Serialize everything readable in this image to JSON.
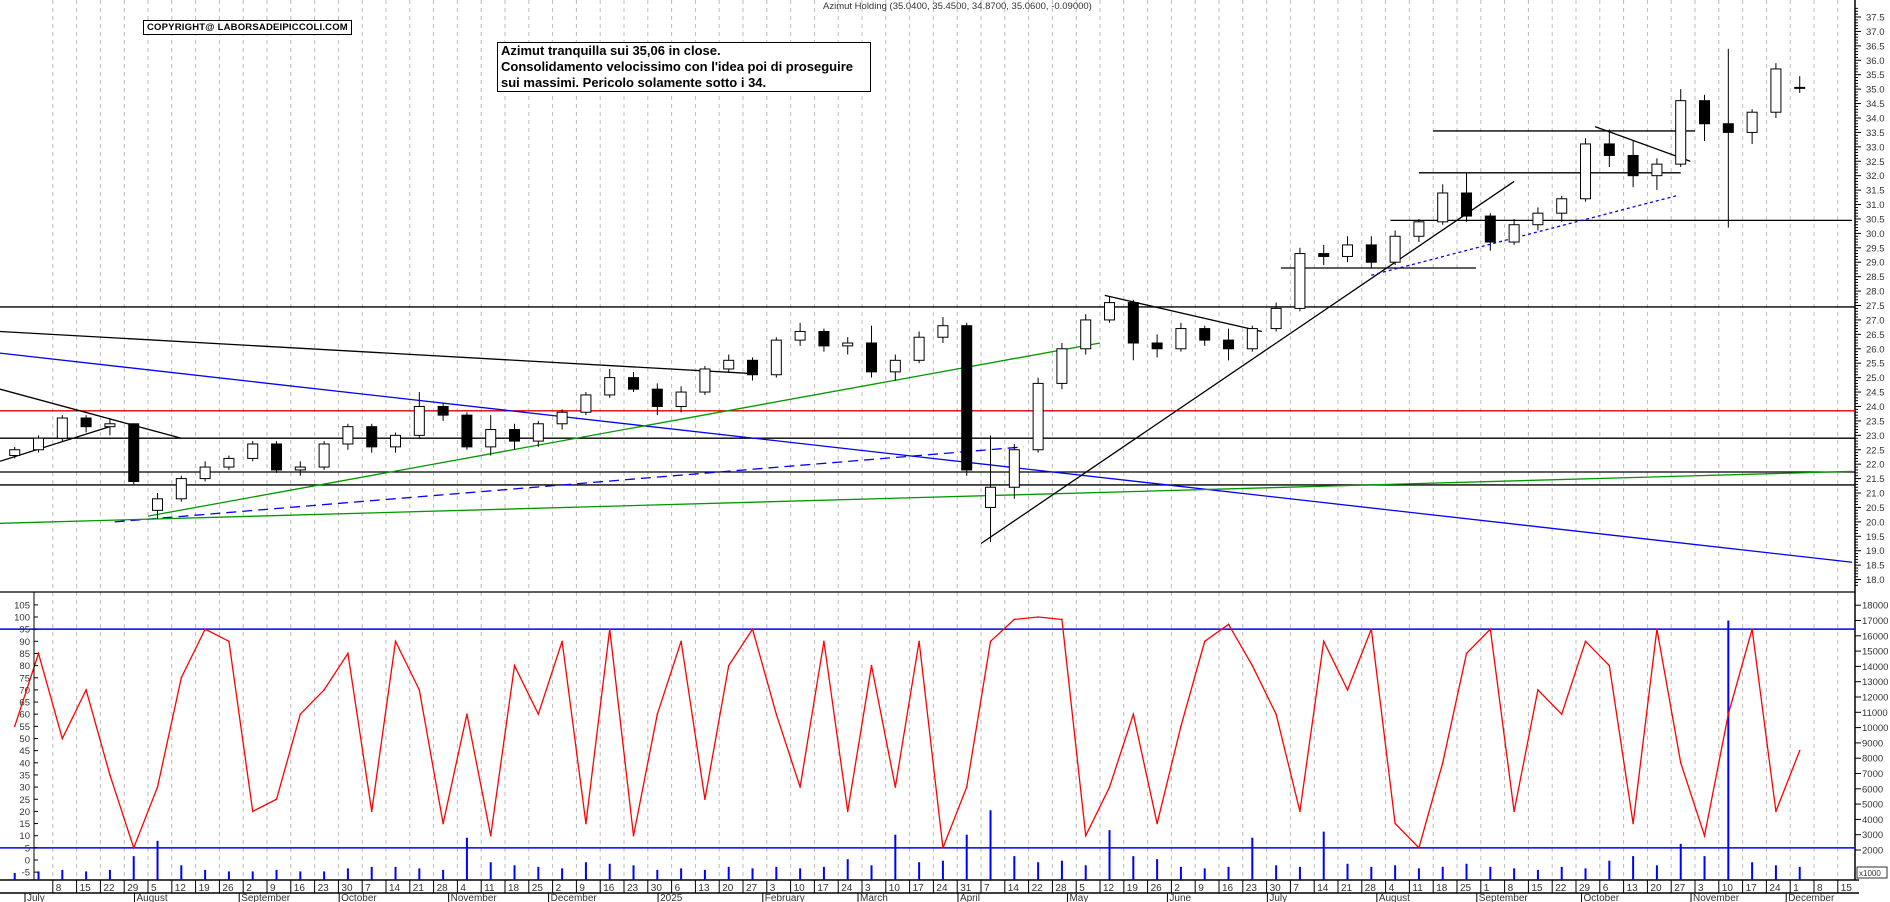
{
  "title": "Azimut Holding (35.0400, 35.4500, 34.8700, 35.0600, -0.09000)",
  "copyright": "COPYRIGHT@ LABORSADEIPICCOLI.COM",
  "note": [
    "Azimut tranquilla sui 35,06 in close.",
    "Consolidamento velocissimo con l'idea poi di proseguire",
    "sui massimi. Pericolo solamente sotto i 34."
  ],
  "colors": {
    "up": "#ffffff",
    "down": "#000000",
    "oscillator": "#ff0000",
    "volume": "#0000ff",
    "grid": "#bbbbbb"
  },
  "chart_data": [
    {
      "type": "candlestick",
      "name": "Azimut Holding",
      "period": "weekly approximation of daily candles",
      "x_range": [
        "2024-06-20",
        "2025-12-18"
      ],
      "ylim": [
        17.8,
        37.9
      ],
      "y_ticks": [
        "18.0",
        "18.5",
        "19.0",
        "19.5",
        "20.0",
        "20.5",
        "21.0",
        "21.5",
        "22.0",
        "22.5",
        "23.0",
        "23.5",
        "24.0",
        "24.5",
        "25.0",
        "25.5",
        "26.0",
        "26.5",
        "27.0",
        "27.5",
        "28.0",
        "28.5",
        "29.0",
        "29.5",
        "30.0",
        "30.5",
        "31.0",
        "31.5",
        "32.0",
        "32.5",
        "33.0",
        "33.5",
        "34.0",
        "34.5",
        "35.0",
        "35.5",
        "36.0",
        "36.5",
        "37.0",
        "37.5"
      ],
      "grid": true,
      "candles": [
        [
          "2024-06-24",
          22.3,
          22.6,
          22.2,
          22.5
        ],
        [
          "2024-07-01",
          22.5,
          23.0,
          22.4,
          22.9
        ],
        [
          "2024-07-08",
          22.9,
          23.7,
          22.8,
          23.6
        ],
        [
          "2024-07-15",
          23.6,
          23.7,
          23.1,
          23.3
        ],
        [
          "2024-07-22",
          23.3,
          23.6,
          23.0,
          23.4
        ],
        [
          "2024-07-29",
          23.4,
          23.4,
          21.3,
          21.4
        ],
        [
          "2024-08-05",
          20.4,
          21.0,
          20.1,
          20.8
        ],
        [
          "2024-08-12",
          20.8,
          21.6,
          20.7,
          21.5
        ],
        [
          "2024-08-19",
          21.5,
          22.1,
          21.4,
          21.9
        ],
        [
          "2024-08-26",
          21.9,
          22.3,
          21.8,
          22.2
        ],
        [
          "2024-09-02",
          22.2,
          22.8,
          22.1,
          22.7
        ],
        [
          "2024-09-09",
          22.7,
          22.8,
          21.7,
          21.8
        ],
        [
          "2024-09-16",
          21.8,
          22.1,
          21.6,
          21.9
        ],
        [
          "2024-09-23",
          21.9,
          22.8,
          21.8,
          22.7
        ],
        [
          "2024-09-30",
          22.7,
          23.4,
          22.5,
          23.3
        ],
        [
          "2024-10-07",
          23.3,
          23.4,
          22.4,
          22.6
        ],
        [
          "2024-10-14",
          22.6,
          23.1,
          22.4,
          23.0
        ],
        [
          "2024-10-21",
          23.0,
          24.5,
          22.9,
          24.0
        ],
        [
          "2024-10-28",
          24.0,
          24.1,
          23.5,
          23.7
        ],
        [
          "2024-11-04",
          23.7,
          23.8,
          22.5,
          22.6
        ],
        [
          "2024-11-11",
          22.6,
          23.7,
          22.3,
          23.2
        ],
        [
          "2024-11-18",
          23.2,
          23.4,
          22.5,
          22.8
        ],
        [
          "2024-11-25",
          22.8,
          23.5,
          22.6,
          23.4
        ],
        [
          "2024-12-02",
          23.4,
          23.9,
          23.2,
          23.8
        ],
        [
          "2024-12-09",
          23.8,
          24.5,
          23.7,
          24.4
        ],
        [
          "2024-12-16",
          24.4,
          25.3,
          24.3,
          25.0
        ],
        [
          "2024-12-23",
          25.0,
          25.2,
          24.5,
          24.6
        ],
        [
          "2024-12-30",
          24.6,
          24.8,
          23.7,
          24.0
        ],
        [
          "2025-01-06",
          24.0,
          24.7,
          23.8,
          24.5
        ],
        [
          "2025-01-13",
          24.5,
          25.4,
          24.4,
          25.3
        ],
        [
          "2025-01-20",
          25.3,
          25.8,
          25.2,
          25.6
        ],
        [
          "2025-01-27",
          25.6,
          25.7,
          24.9,
          25.1
        ],
        [
          "2025-02-03",
          25.1,
          26.4,
          25.0,
          26.3
        ],
        [
          "2025-02-10",
          26.3,
          26.9,
          26.1,
          26.6
        ],
        [
          "2025-02-17",
          26.6,
          26.7,
          25.9,
          26.1
        ],
        [
          "2025-02-24",
          26.1,
          26.4,
          25.8,
          26.2
        ],
        [
          "2025-03-03",
          26.2,
          26.8,
          25.0,
          25.2
        ],
        [
          "2025-03-10",
          25.2,
          25.8,
          24.9,
          25.6
        ],
        [
          "2025-03-17",
          25.6,
          26.6,
          25.5,
          26.4
        ],
        [
          "2025-03-24",
          26.4,
          27.1,
          26.2,
          26.8
        ],
        [
          "2025-03-31",
          26.8,
          26.9,
          21.6,
          21.8
        ],
        [
          "2025-04-07",
          20.5,
          23.0,
          19.3,
          21.2
        ],
        [
          "2025-04-14",
          21.2,
          22.7,
          20.8,
          22.5
        ],
        [
          "2025-04-21",
          22.5,
          25.0,
          22.4,
          24.8
        ],
        [
          "2025-04-28",
          24.8,
          26.2,
          24.6,
          26.0
        ],
        [
          "2025-05-05",
          26.0,
          27.2,
          25.8,
          27.0
        ],
        [
          "2025-05-12",
          27.0,
          27.8,
          26.9,
          27.6
        ],
        [
          "2025-05-19",
          27.6,
          27.7,
          25.6,
          26.2
        ],
        [
          "2025-05-26",
          26.2,
          26.5,
          25.7,
          26.0
        ],
        [
          "2025-06-02",
          26.0,
          26.9,
          25.9,
          26.7
        ],
        [
          "2025-06-09",
          26.7,
          26.8,
          26.1,
          26.3
        ],
        [
          "2025-06-16",
          26.3,
          26.7,
          25.6,
          26.0
        ],
        [
          "2025-06-23",
          26.0,
          26.8,
          25.9,
          26.7
        ],
        [
          "2025-06-30",
          26.7,
          27.6,
          26.6,
          27.4
        ],
        [
          "2025-07-07",
          27.4,
          29.5,
          27.3,
          29.3
        ],
        [
          "2025-07-14",
          29.3,
          29.6,
          28.9,
          29.2
        ],
        [
          "2025-07-21",
          29.2,
          29.9,
          29.0,
          29.6
        ],
        [
          "2025-07-28",
          29.6,
          29.9,
          28.8,
          29.0
        ],
        [
          "2025-08-04",
          29.0,
          30.1,
          28.9,
          29.9
        ],
        [
          "2025-08-11",
          29.9,
          30.5,
          29.7,
          30.4
        ],
        [
          "2025-08-18",
          30.4,
          31.7,
          30.3,
          31.4
        ],
        [
          "2025-08-25",
          31.4,
          32.1,
          30.4,
          30.6
        ],
        [
          "2025-09-01",
          30.6,
          30.7,
          29.4,
          29.7
        ],
        [
          "2025-09-08",
          29.7,
          30.5,
          29.6,
          30.3
        ],
        [
          "2025-09-15",
          30.3,
          30.9,
          30.1,
          30.7
        ],
        [
          "2025-09-22",
          30.7,
          31.3,
          30.4,
          31.2
        ],
        [
          "2025-09-29",
          31.2,
          33.3,
          31.1,
          33.1
        ],
        [
          "2025-10-06",
          33.1,
          33.6,
          32.3,
          32.7
        ],
        [
          "2025-10-13",
          32.7,
          33.2,
          31.6,
          32.0
        ],
        [
          "2025-10-20",
          32.0,
          32.6,
          31.5,
          32.4
        ],
        [
          "2025-10-27",
          32.4,
          35.0,
          32.3,
          34.6
        ],
        [
          "2025-11-03",
          34.6,
          34.8,
          33.2,
          33.8
        ],
        [
          "2025-11-10",
          33.8,
          36.4,
          30.2,
          33.5
        ],
        [
          "2025-11-17",
          33.5,
          34.3,
          33.1,
          34.2
        ],
        [
          "2025-11-24",
          34.2,
          35.9,
          34.0,
          35.7
        ],
        [
          "2025-12-01",
          35.04,
          35.45,
          34.87,
          35.06
        ]
      ],
      "lines": [
        {
          "kind": "horizontal",
          "color": "#000000",
          "price": 27.45
        },
        {
          "kind": "horizontal",
          "color": "#dd0000",
          "price": 23.85
        },
        {
          "kind": "horizontal",
          "color": "#000000",
          "price": 22.9
        },
        {
          "kind": "horizontal",
          "color": "#000000",
          "price": 21.73
        },
        {
          "kind": "horizontal",
          "color": "#000000",
          "price": 21.28
        },
        {
          "kind": "trend",
          "color": "#000000",
          "from": [
            "2024-06-20",
            26.6
          ],
          "to": [
            "2025-01-28",
            25.15
          ]
        },
        {
          "kind": "trend",
          "color": "#000000",
          "from": [
            "2024-06-20",
            24.6
          ],
          "to": [
            "2024-08-14",
            22.9
          ]
        },
        {
          "kind": "trend",
          "color": "#000000",
          "from": [
            "2024-06-20",
            22.1
          ],
          "to": [
            "2024-07-24",
            23.3
          ]
        },
        {
          "kind": "trend",
          "color": "#0000ff",
          "from": [
            "2024-06-20",
            25.85
          ],
          "to": [
            "2025-12-18",
            18.6
          ]
        },
        {
          "kind": "trend",
          "color": "#0000ff",
          "style": "dashed",
          "from": [
            "2024-07-25",
            20.0
          ],
          "to": [
            "2025-04-18",
            22.6
          ]
        },
        {
          "kind": "trend",
          "color": "#009900",
          "from": [
            "2024-08-05",
            20.2
          ],
          "to": [
            "2025-05-12",
            26.2
          ]
        },
        {
          "kind": "trend",
          "color": "#009900",
          "from": [
            "2024-06-20",
            19.95
          ],
          "to": [
            "2025-12-18",
            21.75
          ]
        },
        {
          "kind": "trend",
          "color": "#000000",
          "from": [
            "2025-04-07",
            19.25
          ],
          "to": [
            "2025-09-10",
            31.8
          ]
        },
        {
          "kind": "trend",
          "color": "#000000",
          "from": [
            "2025-05-13",
            27.85
          ],
          "to": [
            "2025-06-27",
            26.6
          ]
        },
        {
          "kind": "trend",
          "color": "#000000",
          "from": [
            "2025-07-03",
            28.8
          ],
          "to": [
            "2025-08-29",
            28.8
          ]
        },
        {
          "kind": "trend",
          "color": "#000000",
          "from": [
            "2025-08-13",
            32.1
          ],
          "to": [
            "2025-10-29",
            32.1
          ]
        },
        {
          "kind": "trend",
          "color": "#000000",
          "from": [
            "2025-08-18",
            33.55
          ],
          "to": [
            "2025-11-03",
            33.55
          ]
        },
        {
          "kind": "trend",
          "color": "#000000",
          "from": [
            "2025-08-05",
            30.45
          ],
          "to": [
            "2025-12-18",
            30.45
          ]
        },
        {
          "kind": "trend",
          "color": "#000000",
          "from": [
            "2025-10-03",
            33.7
          ],
          "to": [
            "2025-10-31",
            32.5
          ]
        },
        {
          "kind": "trend",
          "color": "#0000ff",
          "style": "dotted",
          "from": [
            "2025-07-30",
            28.55
          ],
          "to": [
            "2025-10-28",
            31.3
          ]
        }
      ]
    },
    {
      "type": "line",
      "name": "oscillator",
      "ylim": [
        -7,
        108
      ],
      "y_ticks": [
        "-5",
        "0",
        "5",
        "10",
        "15",
        "20",
        "25",
        "30",
        "35",
        "40",
        "45",
        "50",
        "55",
        "60",
        "65",
        "70",
        "75",
        "80",
        "85",
        "90",
        "95",
        "100",
        "105"
      ],
      "levels": [
        95,
        5
      ],
      "values": [
        55,
        85,
        50,
        70,
        35,
        5,
        30,
        75,
        95,
        90,
        20,
        25,
        60,
        70,
        85,
        20,
        90,
        70,
        15,
        60,
        10,
        80,
        60,
        90,
        15,
        95,
        10,
        60,
        90,
        25,
        80,
        95,
        60,
        30,
        90,
        20,
        80,
        30,
        90,
        5,
        30,
        90,
        99,
        100,
        99,
        10,
        30,
        60,
        15,
        55,
        90,
        97,
        80,
        60,
        20,
        90,
        70,
        95,
        15,
        5,
        40,
        85,
        95,
        20,
        70,
        60,
        90,
        80,
        15,
        95,
        40,
        10,
        60,
        95,
        20,
        45
      ]
    },
    {
      "type": "bar",
      "name": "volume",
      "unit_label": "x1000",
      "y_ticks": [
        "2000",
        "3000",
        "4000",
        "5000",
        "6000",
        "7000",
        "8000",
        "9000",
        "10000",
        "11000",
        "12000",
        "13000",
        "14000",
        "15000",
        "16000",
        "17000",
        "18000"
      ],
      "values_thousands": [
        0.5,
        0.6,
        0.7,
        0.6,
        0.7,
        1.6,
        2.6,
        1.0,
        0.7,
        0.6,
        0.6,
        0.7,
        0.6,
        0.6,
        0.8,
        0.9,
        0.9,
        0.8,
        0.7,
        2.8,
        1.2,
        1.0,
        0.9,
        0.8,
        1.2,
        1.1,
        1.0,
        0.7,
        0.8,
        0.7,
        0.9,
        0.8,
        0.9,
        0.8,
        0.9,
        1.4,
        1.0,
        3.0,
        1.2,
        1.3,
        3.0,
        4.6,
        1.6,
        1.2,
        1.3,
        1.0,
        3.3,
        1.6,
        1.4,
        0.9,
        0.8,
        0.9,
        2.8,
        1.0,
        0.9,
        3.2,
        1.1,
        0.9,
        1.0,
        0.8,
        0.9,
        1.1,
        0.9,
        0.8,
        0.7,
        0.9,
        0.8,
        1.3,
        1.6,
        1.0,
        2.4,
        1.6,
        17.0,
        1.2,
        1.0,
        0.9
      ]
    }
  ],
  "x_axis": {
    "week_labels": [
      "8",
      "15",
      "22",
      "29",
      "5",
      "12",
      "19",
      "26",
      "2",
      "9",
      "16",
      "23",
      "30",
      "7",
      "14",
      "21",
      "28",
      "4",
      "11",
      "18",
      "25",
      "2",
      "9",
      "16",
      "23",
      "30",
      "6",
      "13",
      "20",
      "27",
      "3",
      "10",
      "17",
      "24",
      "3",
      "10",
      "17",
      "24",
      "31",
      "7",
      "14",
      "22",
      "28",
      "5",
      "12",
      "19",
      "26",
      "2",
      "9",
      "16",
      "23",
      "30",
      "7",
      "14",
      "21",
      "28",
      "4",
      "11",
      "18",
      "25",
      "1",
      "8",
      "15",
      "22",
      "29",
      "6",
      "13",
      "20",
      "27",
      "3",
      "10",
      "17",
      "24",
      "1",
      "8",
      "15"
    ],
    "months": [
      {
        "label": "July",
        "start": "2024-07-01"
      },
      {
        "label": "August",
        "start": "2024-08-01"
      },
      {
        "label": "September",
        "start": "2024-09-02"
      },
      {
        "label": "October",
        "start": "2024-10-01"
      },
      {
        "label": "November",
        "start": "2024-11-01"
      },
      {
        "label": "December",
        "start": "2024-12-02"
      },
      {
        "label": "2025",
        "start": "2025-01-02"
      },
      {
        "label": "February",
        "start": "2025-02-03"
      },
      {
        "label": "March",
        "start": "2025-03-03"
      },
      {
        "label": "April",
        "start": "2025-04-01"
      },
      {
        "label": "May",
        "start": "2025-05-02"
      },
      {
        "label": "June",
        "start": "2025-06-02"
      },
      {
        "label": "July",
        "start": "2025-07-01"
      },
      {
        "label": "August",
        "start": "2025-08-01"
      },
      {
        "label": "September",
        "start": "2025-09-01"
      },
      {
        "label": "October",
        "start": "2025-10-01"
      },
      {
        "label": "November",
        "start": "2025-11-03"
      },
      {
        "label": "December",
        "start": "2025-12-01"
      }
    ]
  }
}
